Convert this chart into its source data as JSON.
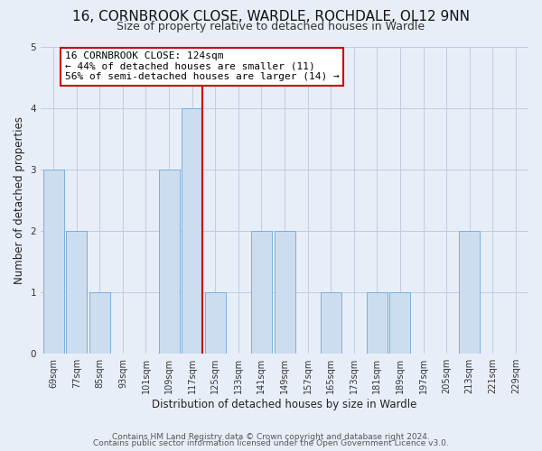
{
  "title": "16, CORNBROOK CLOSE, WARDLE, ROCHDALE, OL12 9NN",
  "subtitle": "Size of property relative to detached houses in Wardle",
  "xlabel": "Distribution of detached houses by size in Wardle",
  "ylabel": "Number of detached properties",
  "categories": [
    "69sqm",
    "77sqm",
    "85sqm",
    "93sqm",
    "101sqm",
    "109sqm",
    "117sqm",
    "125sqm",
    "133sqm",
    "141sqm",
    "149sqm",
    "157sqm",
    "165sqm",
    "173sqm",
    "181sqm",
    "189sqm",
    "197sqm",
    "205sqm",
    "213sqm",
    "221sqm",
    "229sqm"
  ],
  "values": [
    3,
    2,
    1,
    0,
    0,
    3,
    4,
    1,
    0,
    2,
    2,
    0,
    1,
    0,
    1,
    1,
    0,
    0,
    2,
    0,
    0
  ],
  "highlight_index": 6,
  "bar_color": "#ccddf0",
  "bar_edge_color": "#7aafdb",
  "highlight_line_color": "#cc0000",
  "annotation_box_color": "#ffffff",
  "annotation_border_color": "#cc0000",
  "annotation_text_line1": "16 CORNBROOK CLOSE: 124sqm",
  "annotation_text_line2": "← 44% of detached houses are smaller (11)",
  "annotation_text_line3": "56% of semi-detached houses are larger (14) →",
  "ylim": [
    0,
    5
  ],
  "yticks": [
    0,
    1,
    2,
    3,
    4,
    5
  ],
  "footer_line1": "Contains HM Land Registry data © Crown copyright and database right 2024.",
  "footer_line2": "Contains public sector information licensed under the Open Government Licence v3.0.",
  "bg_color": "#e8eef8",
  "plot_bg_color": "#e8eef8",
  "grid_color": "#c0cce0",
  "title_fontsize": 11,
  "subtitle_fontsize": 9,
  "axis_label_fontsize": 8.5,
  "tick_fontsize": 7,
  "annotation_fontsize": 8,
  "footer_fontsize": 6.5
}
